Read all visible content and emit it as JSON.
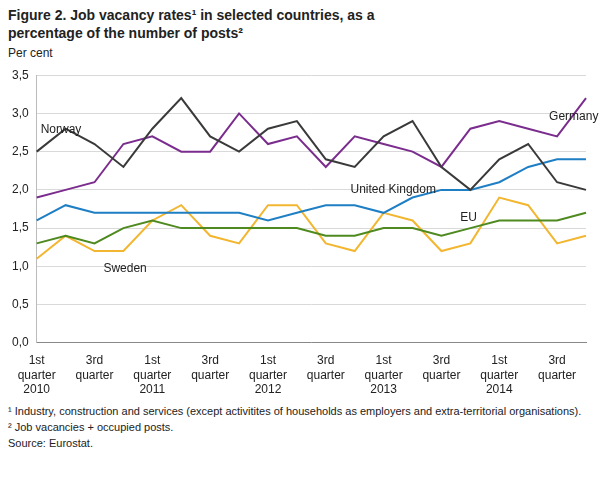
{
  "chart_data": {
    "type": "line",
    "title": "Figure 2. Job vacancy rates¹  in selected countries, as a percentage of the number of posts²",
    "y_label": "Per cent",
    "categories": [
      "1st quarter 2010",
      null,
      "3rd quarter",
      null,
      "1st quarter 2011",
      null,
      "3rd quarter",
      null,
      "1st quarter 2012",
      null,
      "3rd quarter",
      null,
      "1st quarter 2013",
      null,
      "3rd quarter",
      null,
      "1st quarter 2014",
      null,
      "3rd quarter",
      null
    ],
    "series": [
      {
        "name": "Norway",
        "color": "#3a3a3a",
        "values": [
          2.5,
          2.8,
          2.6,
          2.3,
          2.8,
          3.2,
          2.7,
          2.5,
          2.8,
          2.9,
          2.4,
          2.3,
          2.7,
          2.9,
          2.3,
          2.0,
          2.4,
          2.6,
          2.1,
          2.0
        ]
      },
      {
        "name": "Germany",
        "color": "#7b2d8e",
        "values": [
          1.9,
          2.0,
          2.1,
          2.6,
          2.7,
          2.5,
          2.5,
          3.0,
          2.6,
          2.7,
          2.3,
          2.7,
          2.6,
          2.5,
          2.3,
          2.8,
          2.9,
          2.8,
          2.7,
          3.2
        ]
      },
      {
        "name": "United Kingdom",
        "color": "#1f7fc4",
        "values": [
          1.6,
          1.8,
          1.7,
          1.7,
          1.7,
          1.7,
          1.7,
          1.7,
          1.6,
          1.7,
          1.8,
          1.8,
          1.7,
          1.9,
          2.0,
          2.0,
          2.1,
          2.3,
          2.4,
          2.4
        ]
      },
      {
        "name": "EU",
        "color": "#4e8a1f",
        "values": [
          1.3,
          1.4,
          1.3,
          1.5,
          1.6,
          1.5,
          1.5,
          1.5,
          1.5,
          1.5,
          1.4,
          1.4,
          1.5,
          1.5,
          1.4,
          1.5,
          1.6,
          1.6,
          1.6,
          1.7
        ]
      },
      {
        "name": "Sweden",
        "color": "#f2b630",
        "values": [
          1.1,
          1.4,
          1.2,
          1.2,
          1.6,
          1.8,
          1.4,
          1.3,
          1.8,
          1.8,
          1.3,
          1.2,
          1.7,
          1.6,
          1.2,
          1.3,
          1.9,
          1.8,
          1.3,
          1.4
        ]
      }
    ],
    "ylim": [
      0,
      3.5
    ],
    "yticks": [
      {
        "value": 0,
        "label": "0,0"
      },
      {
        "value": 0.5,
        "label": "0,5"
      },
      {
        "value": 1,
        "label": "1,0"
      },
      {
        "value": 1.5,
        "label": "1,5"
      },
      {
        "value": 2,
        "label": "2,0"
      },
      {
        "value": 2.5,
        "label": "2,5"
      },
      {
        "value": 3,
        "label": "3,0"
      },
      {
        "value": 3.5,
        "label": "3,5"
      }
    ],
    "grid": true,
    "legend": false,
    "notes": [
      "¹ Industry, construction and services (except activitites of households as employers and extra-territorial organisations).",
      "² Job vacancies + occupied posts.",
      "Source: Eurostat."
    ]
  }
}
